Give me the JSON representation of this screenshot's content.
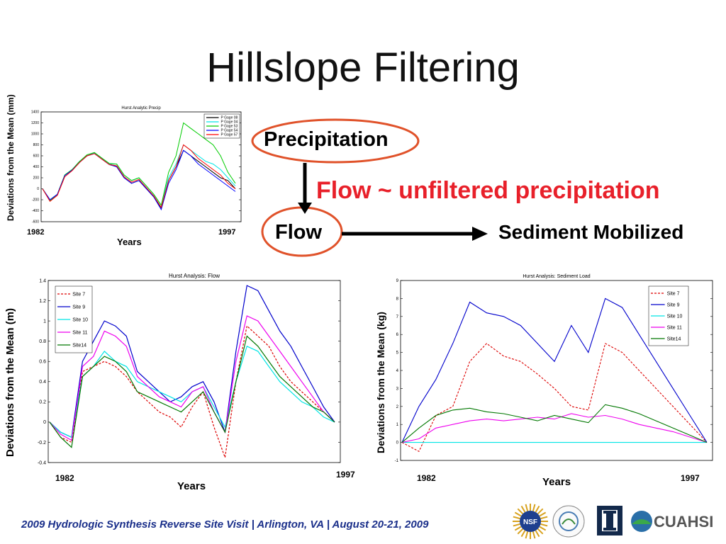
{
  "slide": {
    "title": "Hillslope Filtering",
    "footer": "2009 Hydrologic Synthesis Reverse Site Visit | Arlington, VA | August 20-21, 2009"
  },
  "flow_diagram": {
    "precipitation": "Precipitation",
    "flow": "Flow",
    "annotation": "Flow ~ unfiltered precipitation",
    "sediment": "Sediment Mobilized",
    "ellipse_color": "#e0522a",
    "annotation_color": "#e8202a"
  },
  "logos": [
    "NSF",
    "CUAHSI"
  ],
  "chart_data": [
    {
      "type": "line",
      "title": "Hurst Analytic Precip",
      "xlabel": "Years",
      "ylabel": "Deviations from the Mean (mm)",
      "x_start_label": "1982",
      "x_end_label": "1997",
      "ylim": [
        -600,
        1400
      ],
      "yticks": [
        "-600",
        "-400",
        "-200",
        "0",
        "200",
        "400",
        "600",
        "800",
        "1000",
        "1200",
        "1400"
      ],
      "legend_position": "top-right",
      "series": [
        {
          "name": "P Gage 08",
          "color": "#000000",
          "values": [
            0,
            -200,
            -100,
            250,
            350,
            500,
            600,
            650,
            550,
            450,
            400,
            200,
            100,
            150,
            0,
            -150,
            -350,
            150,
            400,
            700,
            600,
            500,
            400,
            300,
            200,
            150,
            0
          ]
        },
        {
          "name": "P Gage 04",
          "color": "#00e5e5",
          "values": [
            0,
            -200,
            -100,
            250,
            350,
            500,
            600,
            650,
            550,
            450,
            450,
            250,
            150,
            200,
            50,
            -100,
            -300,
            200,
            450,
            800,
            700,
            600,
            500,
            450,
            350,
            200,
            50
          ]
        },
        {
          "name": "P Gage 53",
          "color": "#00cc00",
          "values": [
            0,
            -220,
            -100,
            250,
            350,
            500,
            620,
            660,
            560,
            460,
            450,
            250,
            150,
            200,
            50,
            -100,
            -300,
            300,
            600,
            1200,
            1100,
            1000,
            900,
            800,
            600,
            300,
            100
          ]
        },
        {
          "name": "P Gage 54",
          "color": "#0000ff",
          "values": [
            0,
            -200,
            -100,
            240,
            340,
            480,
            600,
            640,
            540,
            440,
            400,
            200,
            100,
            150,
            0,
            -150,
            -380,
            100,
            350,
            700,
            600,
            450,
            350,
            250,
            150,
            50,
            -50
          ]
        },
        {
          "name": "P Gage 57",
          "color": "#ff0000",
          "values": [
            0,
            -230,
            -120,
            220,
            330,
            480,
            600,
            640,
            540,
            440,
            420,
            220,
            120,
            170,
            20,
            -130,
            -340,
            150,
            400,
            800,
            700,
            550,
            450,
            350,
            250,
            100,
            0
          ]
        }
      ]
    },
    {
      "type": "line",
      "title": "Hurst Analysis: Flow",
      "xlabel": "Years",
      "ylabel": "Deviations from the Mean (m)",
      "x_start_label": "1982",
      "x_end_label": "1997",
      "ylim": [
        -0.4,
        1.4
      ],
      "yticks": [
        "-0.4",
        "-0.2",
        "0",
        "0.2",
        "0.4",
        "0.6",
        "0.8",
        "1",
        "1.2",
        "1.4"
      ],
      "legend_position": "top-left",
      "series": [
        {
          "name": "Site 7",
          "color": "#dd0000",
          "dashed": true,
          "values": [
            0,
            -0.15,
            -0.2,
            0.5,
            0.55,
            0.6,
            0.55,
            0.45,
            0.3,
            0.2,
            0.1,
            0.05,
            -0.05,
            0.15,
            0.3,
            -0.05,
            -0.35,
            0.4,
            0.95,
            0.85,
            0.75,
            0.55,
            0.4,
            0.3,
            0.2,
            0.1,
            0
          ]
        },
        {
          "name": "Site 9",
          "color": "#0000cc",
          "values": [
            0,
            -0.1,
            -0.15,
            0.6,
            0.8,
            1.0,
            0.95,
            0.85,
            0.5,
            0.4,
            0.3,
            0.2,
            0.25,
            0.35,
            0.4,
            0.2,
            -0.1,
            0.7,
            1.35,
            1.3,
            1.1,
            0.9,
            0.75,
            0.55,
            0.35,
            0.15,
            0
          ]
        },
        {
          "name": "Site 10",
          "color": "#00e5e5",
          "values": [
            0,
            -0.1,
            -0.15,
            0.45,
            0.55,
            0.7,
            0.6,
            0.55,
            0.4,
            0.35,
            0.3,
            0.25,
            0.2,
            0.3,
            0.35,
            0.15,
            -0.05,
            0.4,
            0.75,
            0.7,
            0.55,
            0.4,
            0.3,
            0.2,
            0.15,
            0.05,
            0
          ]
        },
        {
          "name": "Site 11",
          "color": "#ee00ee",
          "values": [
            0,
            -0.12,
            -0.18,
            0.55,
            0.65,
            0.9,
            0.85,
            0.75,
            0.45,
            0.35,
            0.25,
            0.2,
            0.15,
            0.3,
            0.35,
            0.1,
            -0.1,
            0.6,
            1.05,
            1.0,
            0.85,
            0.7,
            0.55,
            0.4,
            0.25,
            0.1,
            0
          ]
        },
        {
          "name": "Site14",
          "color": "#007700",
          "values": [
            0,
            -0.15,
            -0.25,
            0.45,
            0.55,
            0.65,
            0.6,
            0.5,
            0.3,
            0.25,
            0.2,
            0.15,
            0.1,
            0.2,
            0.3,
            0.1,
            -0.1,
            0.4,
            0.85,
            0.75,
            0.6,
            0.45,
            0.35,
            0.25,
            0.15,
            0.1,
            0
          ]
        }
      ]
    },
    {
      "type": "line",
      "title": "Hurst Analysis: Sediment Load",
      "xlabel": "Years",
      "ylabel": "Deviations from the Mean (kg)",
      "x_start_label": "1982",
      "x_end_label": "1997",
      "ylim": [
        -1,
        9
      ],
      "yticks": [
        "-1",
        "0",
        "1",
        "2",
        "3",
        "4",
        "5",
        "6",
        "7",
        "8",
        "9"
      ],
      "legend_position": "top-right",
      "series": [
        {
          "name": "Site 7",
          "color": "#dd0000",
          "dashed": true,
          "values": [
            0,
            -0.5,
            1.5,
            2.0,
            4.5,
            5.5,
            4.8,
            4.5,
            3.8,
            3.0,
            2.0,
            1.8,
            5.5,
            5.0,
            4.0,
            3.0,
            2.0,
            1.0,
            0
          ]
        },
        {
          "name": "Site 9",
          "color": "#0000cc",
          "values": [
            0,
            2.0,
            3.5,
            5.5,
            7.8,
            7.2,
            7.0,
            6.5,
            5.5,
            4.5,
            6.5,
            5.0,
            8.0,
            7.5,
            6.0,
            4.5,
            3.0,
            1.5,
            0
          ]
        },
        {
          "name": "Site 10",
          "color": "#00e5e5",
          "values": [
            0,
            0,
            0,
            0,
            0,
            0,
            0,
            0,
            0,
            0,
            0,
            0,
            0,
            0,
            0,
            0,
            0,
            0,
            0
          ]
        },
        {
          "name": "Site 11",
          "color": "#ee00ee",
          "values": [
            0,
            0.2,
            0.8,
            1.0,
            1.2,
            1.3,
            1.2,
            1.3,
            1.4,
            1.3,
            1.6,
            1.4,
            1.5,
            1.3,
            1.0,
            0.8,
            0.6,
            0.3,
            0
          ]
        },
        {
          "name": "Site14",
          "color": "#007700",
          "values": [
            0,
            0.8,
            1.5,
            1.8,
            1.9,
            1.7,
            1.6,
            1.4,
            1.2,
            1.5,
            1.3,
            1.1,
            2.1,
            1.9,
            1.6,
            1.2,
            0.8,
            0.4,
            0
          ]
        }
      ]
    }
  ]
}
